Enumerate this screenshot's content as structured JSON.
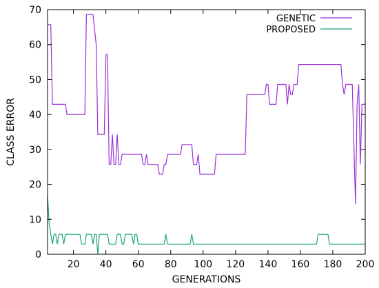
{
  "chart_data": {
    "type": "line",
    "title": "",
    "xlabel": "GENERATIONS",
    "ylabel": "CLASS ERROR",
    "xlim": [
      4,
      200
    ],
    "ylim": [
      0,
      70
    ],
    "xticks": [
      20,
      40,
      60,
      80,
      100,
      120,
      140,
      160,
      180,
      200
    ],
    "yticks": [
      0,
      10,
      20,
      30,
      40,
      50,
      60,
      70
    ],
    "grid": false,
    "legend_position": "top-right",
    "series": [
      {
        "name": "GENETIC",
        "color": "#9b30d9",
        "points": [
          [
            4,
            65.7
          ],
          [
            6,
            65.7
          ],
          [
            7,
            42.9
          ],
          [
            15,
            42.9
          ],
          [
            16,
            40
          ],
          [
            27,
            40
          ],
          [
            28,
            68.6
          ],
          [
            32,
            68.6
          ],
          [
            34,
            60
          ],
          [
            35,
            34.3
          ],
          [
            39,
            34.3
          ],
          [
            40,
            57.1
          ],
          [
            41,
            57.1
          ],
          [
            42,
            25.7
          ],
          [
            43,
            25.7
          ],
          [
            44,
            34.3
          ],
          [
            45,
            25.7
          ],
          [
            46,
            25.7
          ],
          [
            47,
            34.3
          ],
          [
            48,
            25.7
          ],
          [
            49,
            25.7
          ],
          [
            50,
            28.6
          ],
          [
            62,
            28.6
          ],
          [
            63,
            25.7
          ],
          [
            64,
            25.7
          ],
          [
            65,
            28.6
          ],
          [
            66,
            25.7
          ],
          [
            72,
            25.7
          ],
          [
            73,
            22.9
          ],
          [
            75,
            22.9
          ],
          [
            76,
            25.7
          ],
          [
            77,
            25.7
          ],
          [
            78,
            28.6
          ],
          [
            86,
            28.6
          ],
          [
            87,
            31.4
          ],
          [
            93,
            31.4
          ],
          [
            94,
            25.7
          ],
          [
            96,
            25.7
          ],
          [
            97,
            28.6
          ],
          [
            98,
            22.9
          ],
          [
            107,
            22.9
          ],
          [
            108,
            28.6
          ],
          [
            126,
            28.6
          ],
          [
            127,
            45.7
          ],
          [
            138,
            45.7
          ],
          [
            139,
            48.6
          ],
          [
            140,
            48.6
          ],
          [
            141,
            42.9
          ],
          [
            145,
            42.9
          ],
          [
            146,
            48.6
          ],
          [
            151,
            48.6
          ],
          [
            152,
            42.9
          ],
          [
            153,
            48.6
          ],
          [
            154,
            45.7
          ],
          [
            155,
            45.7
          ],
          [
            156,
            48.6
          ],
          [
            158,
            48.6
          ],
          [
            159,
            54.3
          ],
          [
            185,
            54.3
          ],
          [
            186,
            48.6
          ],
          [
            187,
            45.7
          ],
          [
            188,
            48.6
          ],
          [
            192,
            48.6
          ],
          [
            194,
            14.3
          ],
          [
            195,
            42.9
          ],
          [
            196,
            48.6
          ],
          [
            197,
            25.7
          ],
          [
            198,
            42.9
          ],
          [
            200,
            42.9
          ]
        ]
      },
      {
        "name": "PROPOSED",
        "color": "#1aa37a",
        "points": [
          [
            4,
            17.1
          ],
          [
            5,
            8.6
          ],
          [
            6,
            5.7
          ],
          [
            7,
            2.9
          ],
          [
            8,
            5.7
          ],
          [
            9,
            5.7
          ],
          [
            10,
            2.9
          ],
          [
            11,
            5.7
          ],
          [
            13,
            5.7
          ],
          [
            14,
            2.9
          ],
          [
            15,
            5.7
          ],
          [
            24,
            5.7
          ],
          [
            25,
            2.9
          ],
          [
            27,
            2.9
          ],
          [
            28,
            5.7
          ],
          [
            31,
            5.7
          ],
          [
            32,
            2.9
          ],
          [
            33,
            5.7
          ],
          [
            34,
            5.7
          ],
          [
            35,
            0
          ],
          [
            36,
            5.7
          ],
          [
            41,
            5.7
          ],
          [
            42,
            2.9
          ],
          [
            46,
            2.9
          ],
          [
            47,
            5.7
          ],
          [
            49,
            5.7
          ],
          [
            50,
            2.9
          ],
          [
            51,
            2.9
          ],
          [
            52,
            5.7
          ],
          [
            56,
            5.7
          ],
          [
            57,
            2.9
          ],
          [
            58,
            5.7
          ],
          [
            59,
            5.7
          ],
          [
            60,
            2.9
          ],
          [
            76,
            2.9
          ],
          [
            77,
            5.7
          ],
          [
            78,
            2.9
          ],
          [
            92,
            2.9
          ],
          [
            93,
            5.7
          ],
          [
            94,
            2.9
          ],
          [
            170,
            2.9
          ],
          [
            171,
            5.7
          ],
          [
            177,
            5.7
          ],
          [
            178,
            2.9
          ],
          [
            200,
            2.9
          ]
        ]
      }
    ]
  }
}
